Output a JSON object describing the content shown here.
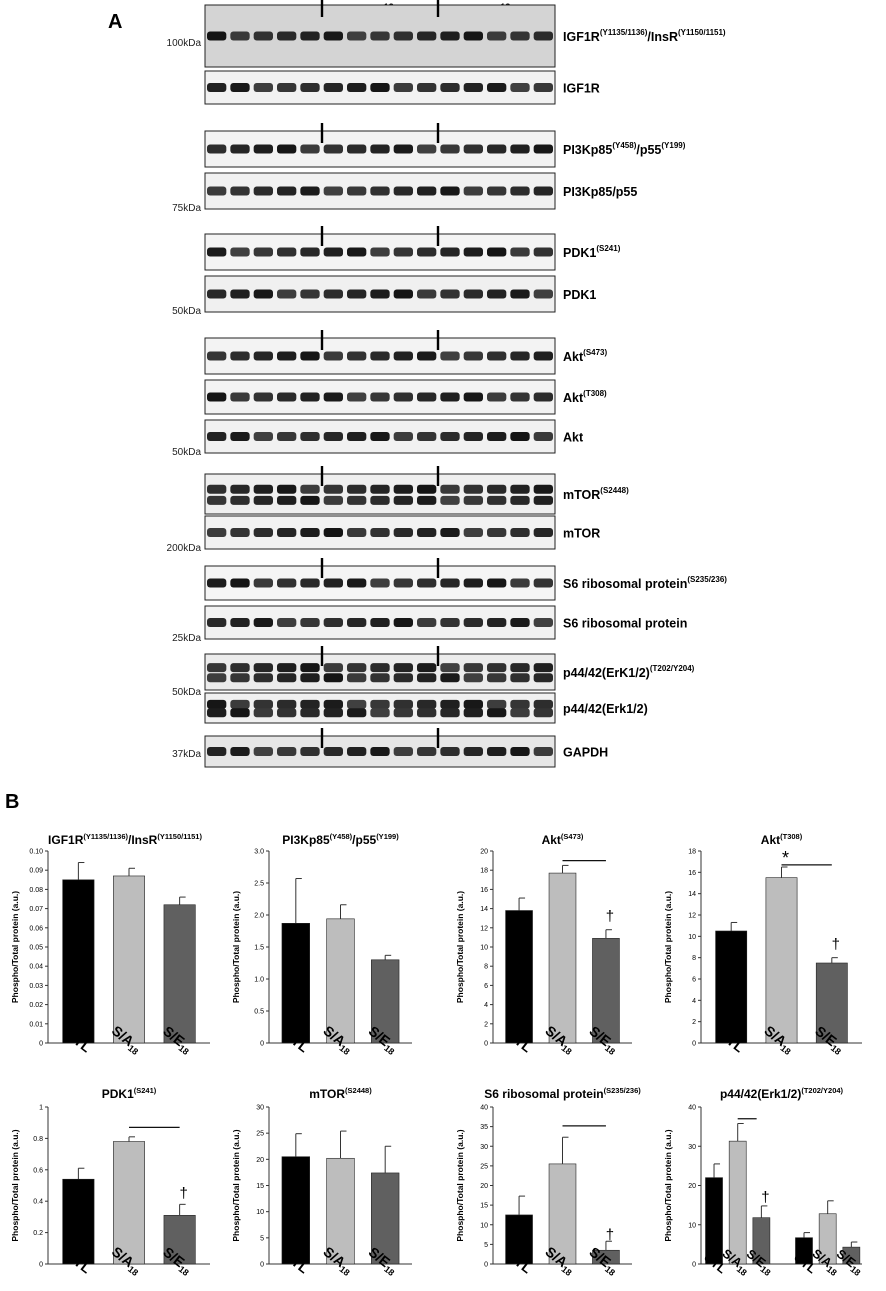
{
  "panel_a": {
    "letter": "A",
    "groups": [
      {
        "main": "CTL",
        "sup": ""
      },
      {
        "main": "S/A",
        "sup": "18"
      },
      {
        "main": "S/E",
        "sup": "18"
      }
    ],
    "rows": [
      {
        "label_main": "IGF1R",
        "label_sup": "(Y1135/1136)",
        "label_mid": "/InsR",
        "label_sup2": "(Y1150/1151)",
        "marker": "100kDa",
        "bg": "#d4d4d4",
        "divider": true
      },
      {
        "label_main": "IGF1R",
        "label_sup": "",
        "label_mid": "",
        "label_sup2": "",
        "marker": "",
        "bg": "#f2f2f2",
        "divider": false
      },
      {
        "label_main": "PI3Kp85",
        "label_sup": "(Y458)",
        "label_mid": "/p55",
        "label_sup2": "(Y199)",
        "marker": "",
        "bg": "#f3f3f3",
        "divider": true
      },
      {
        "label_main": "PI3Kp85/p55",
        "label_sup": "",
        "label_mid": "",
        "label_sup2": "",
        "marker": "75kDa",
        "bg": "#f1f1f1",
        "divider": false
      },
      {
        "label_main": "PDK1",
        "label_sup": "(S241)",
        "label_mid": "",
        "label_sup2": "",
        "marker": "",
        "bg": "#f4f4f4",
        "divider": true
      },
      {
        "label_main": "PDK1",
        "label_sup": "",
        "label_mid": "",
        "label_sup2": "",
        "marker": "50kDa",
        "bg": "#f0f0f0",
        "divider": false
      },
      {
        "label_main": "Akt",
        "label_sup": "(S473)",
        "label_mid": "",
        "label_sup2": "",
        "marker": "",
        "bg": "#f3f3f3",
        "divider": true
      },
      {
        "label_main": "Akt",
        "label_sup": "(T308)",
        "label_mid": "",
        "label_sup2": "",
        "marker": "",
        "bg": "#f3f3f3",
        "divider": false
      },
      {
        "label_main": "Akt",
        "label_sup": "",
        "label_mid": "",
        "label_sup2": "",
        "marker": "50kDa",
        "bg": "#f1f1f1",
        "divider": false
      },
      {
        "label_main": "mTOR",
        "label_sup": "(S2448)",
        "label_mid": "",
        "label_sup2": "",
        "marker": "",
        "bg": "#efefef",
        "divider": true
      },
      {
        "label_main": "mTOR",
        "label_sup": "",
        "label_mid": "",
        "label_sup2": "",
        "marker": "200kDa",
        "bg": "#f2f2f2",
        "divider": false
      },
      {
        "label_main": "S6 ribosomal protein",
        "label_sup": "(S235/236)",
        "label_mid": "",
        "label_sup2": "",
        "marker": "",
        "bg": "#f5f5f5",
        "divider": true
      },
      {
        "label_main": "S6 ribosomal protein",
        "label_sup": "",
        "label_mid": "",
        "label_sup2": "",
        "marker": "25kDa",
        "bg": "#f2f2f2",
        "divider": false
      },
      {
        "label_main": "p44/42(ErK1/2)",
        "label_sup": "(T202/Y204)",
        "label_mid": "",
        "label_sup2": "",
        "marker": "50kDa",
        "bg": "#ececec",
        "divider": true
      },
      {
        "label_main": "p44/42(Erk1/2)",
        "label_sup": "",
        "label_mid": "",
        "label_sup2": "",
        "marker": "",
        "bg": "#f0f0f0",
        "divider": false
      },
      {
        "label_main": "GAPDH",
        "label_sup": "",
        "label_mid": "",
        "label_sup2": "",
        "marker": "37kDa",
        "bg": "#e6e6e6",
        "divider": true
      }
    ]
  },
  "panel_b": {
    "letter": "B",
    "ylabel": "Phospho/Total protein (a.u.)",
    "colors": {
      "CTL": "#000000",
      "SA": "#bdbdbd",
      "SE": "#606060"
    }
  },
  "chart_data": [
    {
      "type": "bar",
      "title_main": "IGF1R",
      "title_sup": "(Y1135/1136)",
      "title_mid": "/InsR",
      "title_sup2": "(Y1150/1151)",
      "ylabel": "Phospho/Total protein (a.u.)",
      "ylim": [
        0,
        0.1
      ],
      "yticks": [
        "0",
        "0.01",
        "0.02",
        "0.03",
        "0.04",
        "0.05",
        "0.06",
        "0.07",
        "0.08",
        "0.09",
        "0.10"
      ],
      "groups": [
        {
          "categories": [
            {
              "main": "CTL",
              "sub": ""
            },
            {
              "main": "S/A",
              "sub": "18"
            },
            {
              "main": "S/E",
              "sub": "18"
            }
          ],
          "values": [
            0.085,
            0.087,
            0.072
          ],
          "errors": [
            0.009,
            0.004,
            0.004
          ]
        }
      ],
      "annotations": []
    },
    {
      "type": "bar",
      "title_main": "PI3Kp85",
      "title_sup": "(Y458)",
      "title_mid": "/p55",
      "title_sup2": "(Y199)",
      "ylabel": "Phospho/Total protein (a.u.)",
      "ylim": [
        0,
        3
      ],
      "yticks": [
        "0",
        "0.5",
        "1.0",
        "1.5",
        "2.0",
        "2.5",
        "3.0"
      ],
      "groups": [
        {
          "categories": [
            {
              "main": "CTL",
              "sub": ""
            },
            {
              "main": "S/A",
              "sub": "18"
            },
            {
              "main": "S/E",
              "sub": "18"
            }
          ],
          "values": [
            1.87,
            1.94,
            1.3
          ],
          "errors": [
            0.7,
            0.22,
            0.07
          ]
        }
      ],
      "annotations": []
    },
    {
      "type": "bar",
      "title_main": "Akt",
      "title_sup": "(S473)",
      "title_mid": "",
      "title_sup2": "",
      "ylabel": "Phospho/Total protein (a.u.)",
      "ylim": [
        0,
        20
      ],
      "yticks": [
        "0",
        "2",
        "4",
        "6",
        "8",
        "10",
        "12",
        "14",
        "16",
        "18",
        "20"
      ],
      "groups": [
        {
          "categories": [
            {
              "main": "CTL",
              "sub": ""
            },
            {
              "main": "S/A",
              "sub": "18"
            },
            {
              "main": "S/E",
              "sub": "18"
            }
          ],
          "values": [
            13.8,
            17.7,
            10.9
          ],
          "errors": [
            1.3,
            0.8,
            0.9
          ]
        }
      ],
      "annotations": [
        {
          "kind": "line",
          "from": [
            1,
            19.0
          ],
          "to": [
            2.3,
            19.0
          ]
        },
        {
          "kind": "text",
          "text": "†",
          "at": [
            2,
            12.7
          ]
        }
      ]
    },
    {
      "type": "bar",
      "title_main": "Akt",
      "title_sup": "(T308)",
      "title_mid": "",
      "title_sup2": "",
      "ylabel": "Phospho/Total protein (a.u.)",
      "ylim": [
        0,
        18
      ],
      "yticks": [
        "0",
        "2",
        "4",
        "6",
        "8",
        "10",
        "12",
        "14",
        "16",
        "18"
      ],
      "groups": [
        {
          "categories": [
            {
              "main": "CTL",
              "sub": ""
            },
            {
              "main": "S/A",
              "sub": "18"
            },
            {
              "main": "S/E",
              "sub": "18"
            }
          ],
          "values": [
            10.5,
            15.5,
            7.5
          ],
          "errors": [
            0.8,
            1.0,
            0.5
          ]
        }
      ],
      "annotations": [
        {
          "kind": "line",
          "from": [
            1,
            16.7
          ],
          "to": [
            2.3,
            16.7
          ]
        },
        {
          "kind": "text",
          "text": "*",
          "at": [
            1,
            16.8
          ]
        },
        {
          "kind": "text",
          "text": "†",
          "at": [
            2,
            8.8
          ]
        }
      ]
    },
    {
      "type": "bar",
      "title_main": "PDK1",
      "title_sup": "(S241)",
      "title_mid": "",
      "title_sup2": "",
      "ylabel": "Phospho/Total protein (a.u.)",
      "ylim": [
        0,
        1
      ],
      "yticks": [
        "0",
        "0.2",
        "0.4",
        "0.6",
        "0.8",
        "1"
      ],
      "groups": [
        {
          "categories": [
            {
              "main": "CTL",
              "sub": ""
            },
            {
              "main": "S/A",
              "sub": "18"
            },
            {
              "main": "S/E",
              "sub": "18"
            }
          ],
          "values": [
            0.54,
            0.78,
            0.31
          ],
          "errors": [
            0.07,
            0.03,
            0.07
          ]
        }
      ],
      "annotations": [
        {
          "kind": "line",
          "from": [
            1,
            0.87
          ],
          "to": [
            2.3,
            0.87
          ]
        },
        {
          "kind": "text",
          "text": "†",
          "at": [
            2,
            0.42
          ]
        }
      ]
    },
    {
      "type": "bar",
      "title_main": "mTOR",
      "title_sup": "(S2448)",
      "title_mid": "",
      "title_sup2": "",
      "ylabel": "Phospho/Total protein (a.u.)",
      "ylim": [
        0,
        30
      ],
      "yticks": [
        "0",
        "5",
        "10",
        "15",
        "20",
        "25",
        "30"
      ],
      "groups": [
        {
          "categories": [
            {
              "main": "CTL",
              "sub": ""
            },
            {
              "main": "S/A",
              "sub": "18"
            },
            {
              "main": "S/E",
              "sub": "18"
            }
          ],
          "values": [
            20.5,
            20.2,
            17.4
          ],
          "errors": [
            4.4,
            5.2,
            5.1
          ]
        }
      ],
      "annotations": []
    },
    {
      "type": "bar",
      "title_main": "S6 ribosomal protein",
      "title_sup": "(S235/236)",
      "title_mid": "",
      "title_sup2": "",
      "ylabel": "Phospho/Total protein (a.u.)",
      "ylim": [
        0,
        40
      ],
      "yticks": [
        "0",
        "5",
        "10",
        "15",
        "20",
        "25",
        "30",
        "35",
        "40"
      ],
      "groups": [
        {
          "categories": [
            {
              "main": "CTL",
              "sub": ""
            },
            {
              "main": "S/A",
              "sub": "18"
            },
            {
              "main": "S/E",
              "sub": "18"
            }
          ],
          "values": [
            12.5,
            25.5,
            3.5
          ],
          "errors": [
            4.8,
            6.8,
            2.3
          ]
        }
      ],
      "annotations": [
        {
          "kind": "line",
          "from": [
            1,
            35.2
          ],
          "to": [
            2.3,
            35.2
          ]
        },
        {
          "kind": "text",
          "text": "†",
          "at": [
            2,
            6.2
          ]
        }
      ]
    },
    {
      "type": "bar",
      "title_main": "p44/42(Erk1/2)",
      "title_sup": "(T202/Y204)",
      "title_mid": "",
      "title_sup2": "",
      "ylabel": "Phospho/Total protein (a.u.)",
      "ylim": [
        0,
        40
      ],
      "yticks": [
        "0",
        "10",
        "20",
        "30",
        "40"
      ],
      "groups": [
        {
          "categories": [
            {
              "main": "CTL",
              "sub": ""
            },
            {
              "main": "S/A",
              "sub": "18"
            },
            {
              "main": "S/E",
              "sub": "18"
            }
          ],
          "values": [
            22,
            31.3,
            11.8
          ],
          "errors": [
            3.5,
            4.5,
            3.0
          ]
        },
        {
          "categories": [
            {
              "main": "CTL",
              "sub": ""
            },
            {
              "main": "S/A",
              "sub": "18"
            },
            {
              "main": "S/E",
              "sub": "18"
            }
          ],
          "values": [
            6.7,
            12.8,
            4.3
          ],
          "errors": [
            1.3,
            3.3,
            1.3
          ]
        }
      ],
      "annotations": [
        {
          "kind": "line",
          "from": [
            1,
            37.0
          ],
          "to": [
            1.8,
            37.0
          ]
        },
        {
          "kind": "text",
          "text": "†",
          "at": [
            2,
            15.8
          ]
        }
      ]
    }
  ]
}
